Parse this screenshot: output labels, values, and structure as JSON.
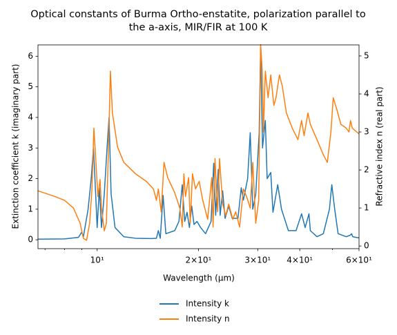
{
  "chart_data": {
    "type": "line",
    "log_x": true,
    "title": [
      "Optical constants of Burma Ortho-enstatite, polarization parallel to",
      "the a-axis, MIR/FIR at 100 K"
    ],
    "xlabel": "Wavelength (μm)",
    "ylabel": "Extinction coefficient k (imaginary part)",
    "y2label": "Refractive index n (real part)",
    "xlim": [
      6.67,
      60
    ],
    "ylim": [
      -0.29,
      6.37
    ],
    "y2lim": [
      -0.07,
      5.29
    ],
    "xticks": [
      {
        "value": 10,
        "label": "10¹"
      },
      {
        "value": 20,
        "label": "2×10¹"
      },
      {
        "value": 30,
        "label": "3×10¹"
      },
      {
        "value": 40,
        "label": "4×10¹"
      },
      {
        "value": 60,
        "label": "6×10¹"
      }
    ],
    "xminorticks": [
      7,
      8,
      9,
      50
    ],
    "yticks": [
      0,
      1,
      2,
      3,
      4,
      5,
      6
    ],
    "y2ticks": [
      0,
      1,
      2,
      3,
      4,
      5
    ],
    "legend": "lower center outside",
    "series": [
      {
        "name": "Intensity k",
        "color": "#1f77b4",
        "axis": "y",
        "x": [
          6.67,
          8,
          8.8,
          9.0,
          9.1,
          9.4,
          9.6,
          9.75,
          9.85,
          10.0,
          10.15,
          10.3,
          10.5,
          10.7,
          10.85,
          11.0,
          11.3,
          12,
          13,
          14.5,
          15.0,
          15.2,
          15.4,
          15.7,
          16.0,
          17,
          17.5,
          17.9,
          18.2,
          18.5,
          18.8,
          19.1,
          19.4,
          19.8,
          20.3,
          21,
          21.8,
          22.2,
          22.5,
          22.9,
          23.2,
          23.6,
          24,
          24.6,
          25.2,
          26.2,
          26.8,
          27.2,
          28,
          28.5,
          29,
          29.6,
          30.3,
          30.6,
          31.0,
          31.6,
          32.0,
          32.8,
          33.3,
          34.4,
          35.3,
          37,
          39,
          40.5,
          41.5,
          42.6,
          43,
          45,
          47,
          49,
          49.8,
          50.8,
          52,
          55,
          56.5,
          57,
          57.5,
          60
        ],
        "values": [
          0.02,
          0.03,
          0.08,
          0.25,
          0.1,
          1.0,
          2.0,
          3.0,
          2.0,
          0.4,
          1.7,
          0.4,
          1.5,
          3.0,
          4.0,
          1.5,
          0.4,
          0.1,
          0.05,
          0.04,
          0.05,
          0.3,
          0.05,
          1.45,
          0.2,
          0.3,
          0.6,
          1.8,
          0.6,
          0.9,
          0.4,
          1.1,
          0.5,
          0.6,
          0.4,
          0.2,
          0.6,
          2.5,
          0.8,
          2.3,
          0.8,
          1.6,
          0.7,
          1.1,
          0.7,
          0.7,
          1.7,
          1.3,
          2.0,
          3.5,
          1.0,
          1.5,
          3.5,
          6.3,
          3.0,
          3.9,
          2.0,
          2.2,
          0.9,
          1.8,
          1.0,
          0.3,
          0.3,
          0.85,
          0.4,
          0.85,
          0.3,
          0.1,
          0.2,
          1.0,
          1.8,
          1.0,
          0.2,
          0.1,
          0.15,
          0.2,
          0.1,
          0.06
        ]
      },
      {
        "name": "Intensity n",
        "color": "#ff7f0e",
        "axis": "y2",
        "x": [
          6.67,
          7.5,
          8,
          8.5,
          8.9,
          9.1,
          9.3,
          9.5,
          9.65,
          9.78,
          9.9,
          10.05,
          10.2,
          10.3,
          10.5,
          10.65,
          10.8,
          10.95,
          11.1,
          11.5,
          12,
          13,
          14,
          14.7,
          15.0,
          15.2,
          15.5,
          15.8,
          16.2,
          17,
          17.6,
          17.9,
          18.1,
          18.3,
          18.7,
          18.9,
          19.2,
          19.6,
          20.1,
          20.6,
          21.3,
          21.9,
          22.1,
          22.4,
          22.8,
          23.1,
          23.6,
          24.1,
          24.6,
          25.3,
          25.8,
          26.5,
          27.2,
          27.8,
          28.5,
          29,
          29.6,
          30.2,
          30.6,
          31.0,
          31.2,
          31.6,
          32.2,
          32.8,
          33.5,
          34.0,
          34.8,
          35.5,
          36.5,
          38,
          39.5,
          40.5,
          41.2,
          42.3,
          43,
          45,
          47,
          48.3,
          49.5,
          50.3,
          51.5,
          53,
          55,
          56,
          56.6,
          57.3,
          60
        ],
        "values": [
          1.45,
          1.3,
          1.2,
          1.0,
          0.6,
          0.2,
          0.15,
          0.6,
          1.5,
          3.1,
          2.3,
          1.3,
          1.75,
          1.0,
          0.4,
          0.6,
          2.5,
          4.6,
          3.5,
          2.6,
          2.2,
          1.9,
          1.7,
          1.5,
          1.2,
          1.5,
          0.9,
          2.2,
          1.8,
          1.4,
          1.0,
          0.5,
          1.9,
          1.3,
          1.8,
          0.6,
          1.9,
          1.5,
          1.7,
          1.2,
          0.7,
          1.8,
          0.5,
          2.3,
          0.9,
          2.3,
          1.1,
          0.8,
          1.1,
          0.7,
          0.9,
          0.5,
          1.5,
          1.3,
          1.0,
          2.2,
          0.6,
          1.2,
          5.3,
          4.5,
          3.0,
          4.6,
          3.9,
          4.5,
          3.7,
          3.9,
          4.5,
          4.2,
          3.5,
          3.1,
          2.8,
          3.3,
          2.9,
          3.5,
          3.2,
          2.8,
          2.4,
          2.2,
          3.0,
          3.9,
          3.6,
          3.2,
          3.1,
          3.0,
          3.3,
          3.1,
          2.95
        ]
      }
    ]
  }
}
